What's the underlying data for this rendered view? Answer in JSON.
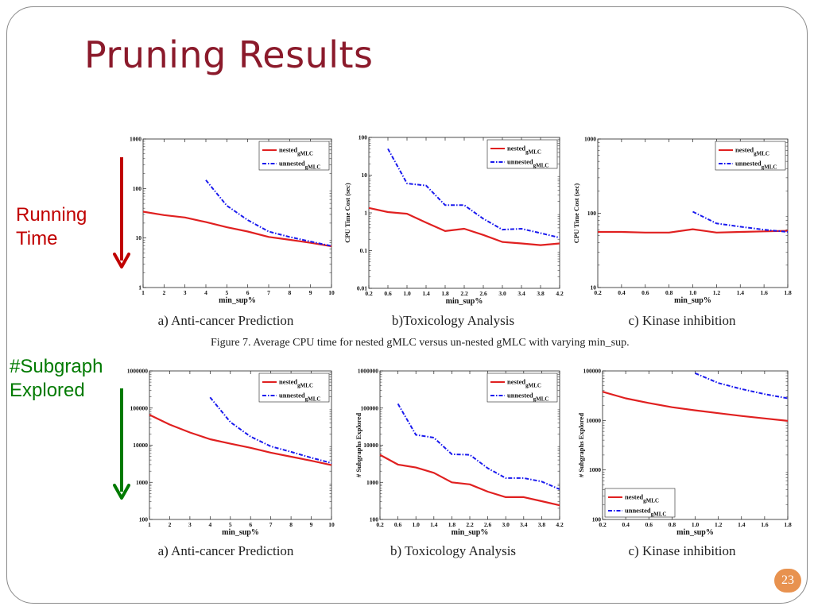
{
  "slide": {
    "title": "Pruning Results",
    "running_label_line1": "Running",
    "running_label_line2": "Time",
    "subgraph_label_line1": "#Subgraph",
    "subgraph_label_line2": "Explored",
    "arrow_colors": {
      "running": "#c00000",
      "subgraph": "#007a00"
    },
    "figure_caption": "Figure 7.    Average CPU time for nested gMLC versus un-nested gMLC with varying min_sup.",
    "page_number": "23"
  },
  "chart_data": [
    {
      "id": "time_anticancer",
      "type": "line",
      "caption": "a) Anti-cancer Prediction",
      "xlabel": "min_sup%",
      "ylabel": "",
      "yscale": "log",
      "xlim": [
        1,
        10
      ],
      "ylim": [
        1,
        1000
      ],
      "xticks": [
        "1",
        "2",
        "3",
        "4",
        "5",
        "6",
        "7",
        "8",
        "9",
        "10"
      ],
      "yticks": [
        "1",
        "10",
        "100",
        "1000"
      ],
      "legend_position": "top-right",
      "series": [
        {
          "name": "nested",
          "name_sub": "gMLC",
          "color": "#e02020",
          "dash": "solid",
          "x": [
            1,
            2,
            3,
            4,
            5,
            6,
            7,
            8,
            9,
            10
          ],
          "y": [
            34,
            29,
            26,
            21,
            16.5,
            13.5,
            10.5,
            9.2,
            8,
            6.8
          ]
        },
        {
          "name": "unnested",
          "name_sub": "gMLC",
          "color": "#1a1aee",
          "dash": "dashdot",
          "x": [
            4,
            5,
            6,
            7,
            8,
            9,
            10
          ],
          "y": [
            148,
            45,
            23,
            13.5,
            10.5,
            8.5,
            6.9
          ]
        }
      ]
    },
    {
      "id": "time_toxicology",
      "type": "line",
      "caption": "b)Toxicology Analysis",
      "xlabel": "min_sup%",
      "ylabel": "CPU Time Cost (sec)",
      "yscale": "log",
      "xlim": [
        0.2,
        4.2
      ],
      "ylim": [
        0.01,
        100
      ],
      "xticks": [
        "0.2",
        "0.6",
        "1.0",
        "1.4",
        "1.8",
        "2.2",
        "2.6",
        "3.0",
        "3.4",
        "3.8",
        "4.2"
      ],
      "yticks": [
        "0.01",
        "0.1",
        "1",
        "10",
        "100"
      ],
      "legend_position": "top-right",
      "series": [
        {
          "name": "nested",
          "name_sub": "gMLC",
          "color": "#e02020",
          "dash": "solid",
          "x": [
            0.2,
            0.6,
            1.0,
            1.4,
            1.8,
            2.2,
            2.6,
            3.0,
            3.4,
            3.8,
            4.2
          ],
          "y": [
            1.35,
            1.05,
            0.95,
            0.55,
            0.33,
            0.38,
            0.26,
            0.17,
            0.155,
            0.14,
            0.155
          ]
        },
        {
          "name": "unnested",
          "name_sub": "gMLC",
          "color": "#1a1aee",
          "dash": "dashdot",
          "x": [
            0.6,
            1.0,
            1.4,
            1.8,
            2.2,
            2.6,
            3.0,
            3.4,
            3.8,
            4.2
          ],
          "y": [
            50,
            6,
            5.3,
            1.6,
            1.6,
            0.7,
            0.36,
            0.38,
            0.29,
            0.22
          ]
        }
      ]
    },
    {
      "id": "time_kinase",
      "type": "line",
      "caption": "c) Kinase inhibition",
      "xlabel": "min_sup%",
      "ylabel": "CPU Time Cost (sec)",
      "yscale": "log",
      "xlim": [
        0.2,
        1.8
      ],
      "ylim": [
        10,
        1000
      ],
      "xticks": [
        "0.2",
        "0.4",
        "0.6",
        "0.8",
        "1.0",
        "1.2",
        "1.4",
        "1.6",
        "1.8"
      ],
      "yticks": [
        "10",
        "100",
        "1000"
      ],
      "legend_position": "top-right",
      "series": [
        {
          "name": "nested",
          "name_sub": "gMLC",
          "color": "#e02020",
          "dash": "solid",
          "x": [
            0.2,
            0.4,
            0.6,
            0.8,
            1.0,
            1.2,
            1.4,
            1.6,
            1.8
          ],
          "y": [
            56,
            56,
            55,
            55,
            61,
            55,
            56,
            57,
            58
          ]
        },
        {
          "name": "unnested",
          "name_sub": "gMLC",
          "color": "#1a1aee",
          "dash": "dashdot",
          "x": [
            1.0,
            1.2,
            1.4,
            1.6,
            1.8
          ],
          "y": [
            105,
            73,
            66,
            60,
            56
          ]
        }
      ]
    },
    {
      "id": "subgraph_anticancer",
      "type": "line",
      "caption": "a) Anti-cancer Prediction",
      "xlabel": "min_sup%",
      "ylabel": "",
      "yscale": "log",
      "xlim": [
        1,
        10
      ],
      "ylim": [
        100,
        1000000
      ],
      "xticks": [
        "1",
        "2",
        "3",
        "4",
        "5",
        "6",
        "7",
        "8",
        "9",
        "10"
      ],
      "yticks": [
        "100",
        "1000",
        "10000",
        "100000",
        "1000000"
      ],
      "legend_position": "top-right",
      "series": [
        {
          "name": "nested",
          "name_sub": "gMLC",
          "color": "#e02020",
          "dash": "solid",
          "x": [
            1,
            2,
            3,
            4,
            5,
            6,
            7,
            8,
            9,
            10
          ],
          "y": [
            66000,
            36000,
            22000,
            14500,
            11000,
            8500,
            6300,
            4900,
            3800,
            2900
          ]
        },
        {
          "name": "unnested",
          "name_sub": "gMLC",
          "color": "#1a1aee",
          "dash": "dashdot",
          "x": [
            4,
            5,
            6,
            7,
            8,
            9,
            10
          ],
          "y": [
            195000,
            42000,
            17000,
            9300,
            6600,
            4600,
            3300
          ]
        }
      ]
    },
    {
      "id": "subgraph_toxicology",
      "type": "line",
      "caption": "b) Toxicology Analysis",
      "xlabel": "min_sup%",
      "ylabel": "# Subgraphs Explored",
      "yscale": "log",
      "xlim": [
        0.2,
        4.2
      ],
      "ylim": [
        100,
        1000000
      ],
      "xticks": [
        "0.2",
        "0.6",
        "1.0",
        "1.4",
        "1.8",
        "2.2",
        "2.6",
        "3.0",
        "3.4",
        "3.8",
        "4.2"
      ],
      "yticks": [
        "100",
        "1000",
        "10000",
        "100000",
        "1000000"
      ],
      "legend_position": "top-right",
      "series": [
        {
          "name": "nested",
          "name_sub": "gMLC",
          "color": "#e02020",
          "dash": "solid",
          "x": [
            0.2,
            0.6,
            1.0,
            1.4,
            1.8,
            2.2,
            2.6,
            3.0,
            3.4,
            3.8,
            4.2
          ],
          "y": [
            5500,
            3000,
            2500,
            1800,
            1000,
            880,
            560,
            400,
            400,
            310,
            240
          ]
        },
        {
          "name": "unnested",
          "name_sub": "gMLC",
          "color": "#1a1aee",
          "dash": "dashdot",
          "x": [
            0.6,
            1.0,
            1.4,
            1.8,
            2.2,
            2.6,
            3.0,
            3.4,
            3.8,
            4.2
          ],
          "y": [
            130000,
            19000,
            16000,
            5700,
            5500,
            2400,
            1300,
            1300,
            1050,
            650
          ]
        }
      ]
    },
    {
      "id": "subgraph_kinase",
      "type": "line",
      "caption": "c) Kinase inhibition",
      "xlabel": "min_sup%",
      "ylabel": "# Subgraphs Explored",
      "yscale": "log",
      "xlim": [
        0.2,
        1.8
      ],
      "ylim": [
        100,
        100000
      ],
      "xticks": [
        "0.2",
        "0.4",
        "0.6",
        "0.8",
        "1.0",
        "1.2",
        "1.4",
        "1.6",
        "1.8"
      ],
      "yticks": [
        "100",
        "1000",
        "10000",
        "100000"
      ],
      "legend_position": "bottom-left",
      "series": [
        {
          "name": "nested",
          "name_sub": "gMLC",
          "color": "#e02020",
          "dash": "solid",
          "x": [
            0.2,
            0.4,
            0.6,
            0.8,
            1.0,
            1.2,
            1.4,
            1.6,
            1.8
          ],
          "y": [
            38000,
            28000,
            22500,
            18500,
            16000,
            14000,
            12300,
            11000,
            9800
          ]
        },
        {
          "name": "unnested",
          "name_sub": "gMLC",
          "color": "#1a1aee",
          "dash": "dashdot",
          "x": [
            1.0,
            1.2,
            1.4,
            1.6,
            1.8
          ],
          "y": [
            90000,
            57000,
            43000,
            34000,
            28000
          ]
        }
      ]
    }
  ]
}
